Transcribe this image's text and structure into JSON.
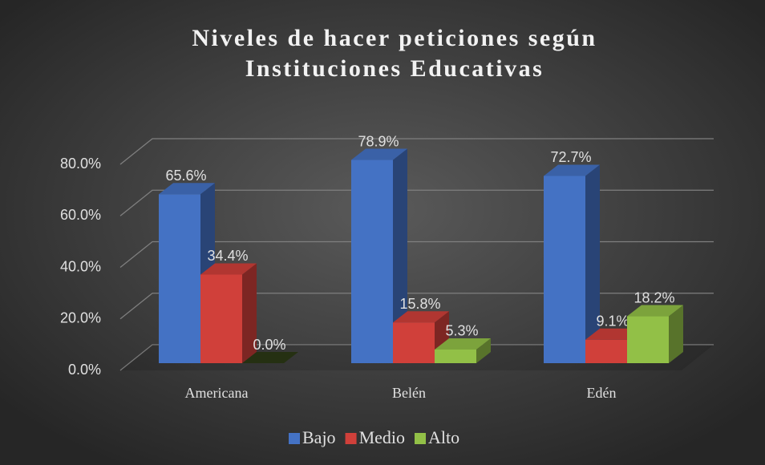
{
  "chart_data": {
    "type": "bar3d",
    "title": [
      "Niveles de  hacer peticiones según",
      "Instituciones Educativas"
    ],
    "categories": [
      "Americana",
      "Belén",
      "Edén"
    ],
    "series": [
      {
        "name": "Bajo",
        "color": "#4472c4",
        "values": [
          65.6,
          78.9,
          72.7
        ],
        "value_labels": [
          "65.6%",
          "78.9%",
          "72.7%"
        ]
      },
      {
        "name": "Medio",
        "color": "#d0403a",
        "values": [
          34.4,
          15.8,
          9.1
        ],
        "value_labels": [
          "34.4%",
          "15.8%",
          "9.1%"
        ]
      },
      {
        "name": "Alto",
        "color": "#92c047",
        "values": [
          0.0,
          5.3,
          18.2
        ],
        "value_labels": [
          "0.0%",
          "5.3%",
          "18.2%"
        ]
      }
    ],
    "ylim": [
      0,
      80
    ],
    "yticks": [
      {
        "value": 0,
        "label": "0.0%"
      },
      {
        "value": 20,
        "label": "20.0%"
      },
      {
        "value": 40,
        "label": "40.0%"
      },
      {
        "value": 60,
        "label": "60.0%"
      },
      {
        "value": 80,
        "label": "80.0%"
      }
    ],
    "grid": true,
    "legend": "bottom"
  }
}
